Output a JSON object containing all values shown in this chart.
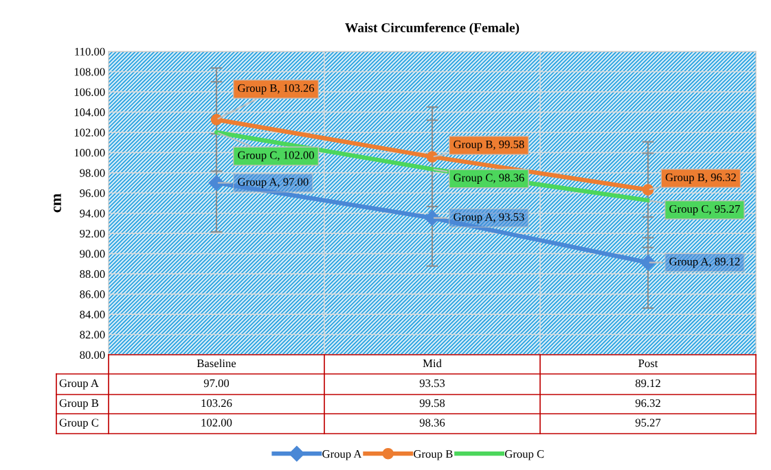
{
  "chart_data": {
    "type": "line",
    "title": "Waist Circumference (Female)",
    "ylabel": "cm",
    "categories": [
      "Baseline",
      "Mid",
      "Post"
    ],
    "series": [
      {
        "name": "Group A",
        "color": "#4a88d6",
        "marker": "diamond",
        "values": [
          97.0,
          93.53,
          89.12
        ],
        "errors": [
          4.85,
          4.76,
          4.5
        ],
        "value_labels": [
          "97.00",
          "93.53",
          "89.12"
        ]
      },
      {
        "name": "Group B",
        "color": "#ed7d31",
        "marker": "circle",
        "values": [
          103.26,
          99.58,
          96.32
        ],
        "errors": [
          5.1,
          4.92,
          4.74
        ],
        "value_labels": [
          "103.26",
          "99.58",
          "96.32"
        ]
      },
      {
        "name": "Group C",
        "color": "#4cd65c",
        "marker": "none",
        "values": [
          102.0,
          98.36,
          95.27
        ],
        "errors": [
          5.0,
          4.84,
          4.66
        ],
        "value_labels": [
          "102.00",
          "98.36",
          "95.27"
        ]
      }
    ],
    "ylim": [
      80,
      110
    ],
    "yticks": [
      {
        "value": 80,
        "label": "80.00"
      },
      {
        "value": 82,
        "label": "82.00"
      },
      {
        "value": 84,
        "label": "84.00"
      },
      {
        "value": 86,
        "label": "86.00"
      },
      {
        "value": 88,
        "label": "88.00"
      },
      {
        "value": 90,
        "label": "90.00"
      },
      {
        "value": 92,
        "label": "92.00"
      },
      {
        "value": 94,
        "label": "94.00"
      },
      {
        "value": 96,
        "label": "96.00"
      },
      {
        "value": 98,
        "label": "98.00"
      },
      {
        "value": 100,
        "label": "100.00"
      },
      {
        "value": 102,
        "label": "102.00"
      },
      {
        "value": 104,
        "label": "104.00"
      },
      {
        "value": 106,
        "label": "106.00"
      },
      {
        "value": 108,
        "label": "108.00"
      },
      {
        "value": 110,
        "label": "110.00"
      }
    ],
    "annotations": [
      {
        "text": "Group A, 97.00",
        "x": "Baseline",
        "y": 97.0
      },
      {
        "text": "Group A, 93.53",
        "x": "Mid",
        "y": 93.53
      },
      {
        "text": "Group A, 89.12",
        "x": "Post",
        "y": 89.12
      },
      {
        "text": "Group B, 103.26",
        "x": "Baseline",
        "y": 103.26
      },
      {
        "text": "Group B, 99.58",
        "x": "Mid",
        "y": 99.58
      },
      {
        "text": "Group B, 96.32",
        "x": "Post",
        "y": 96.32
      },
      {
        "text": "Group C, 102.00",
        "x": "Baseline",
        "y": 102.0
      },
      {
        "text": "Group C, 98.36",
        "x": "Mid",
        "y": 98.36
      },
      {
        "text": "Group C, 95.27",
        "x": "Post",
        "y": 95.27
      }
    ],
    "grid": true,
    "legend": "bottom",
    "data_labels": true,
    "line_style": "solid"
  }
}
